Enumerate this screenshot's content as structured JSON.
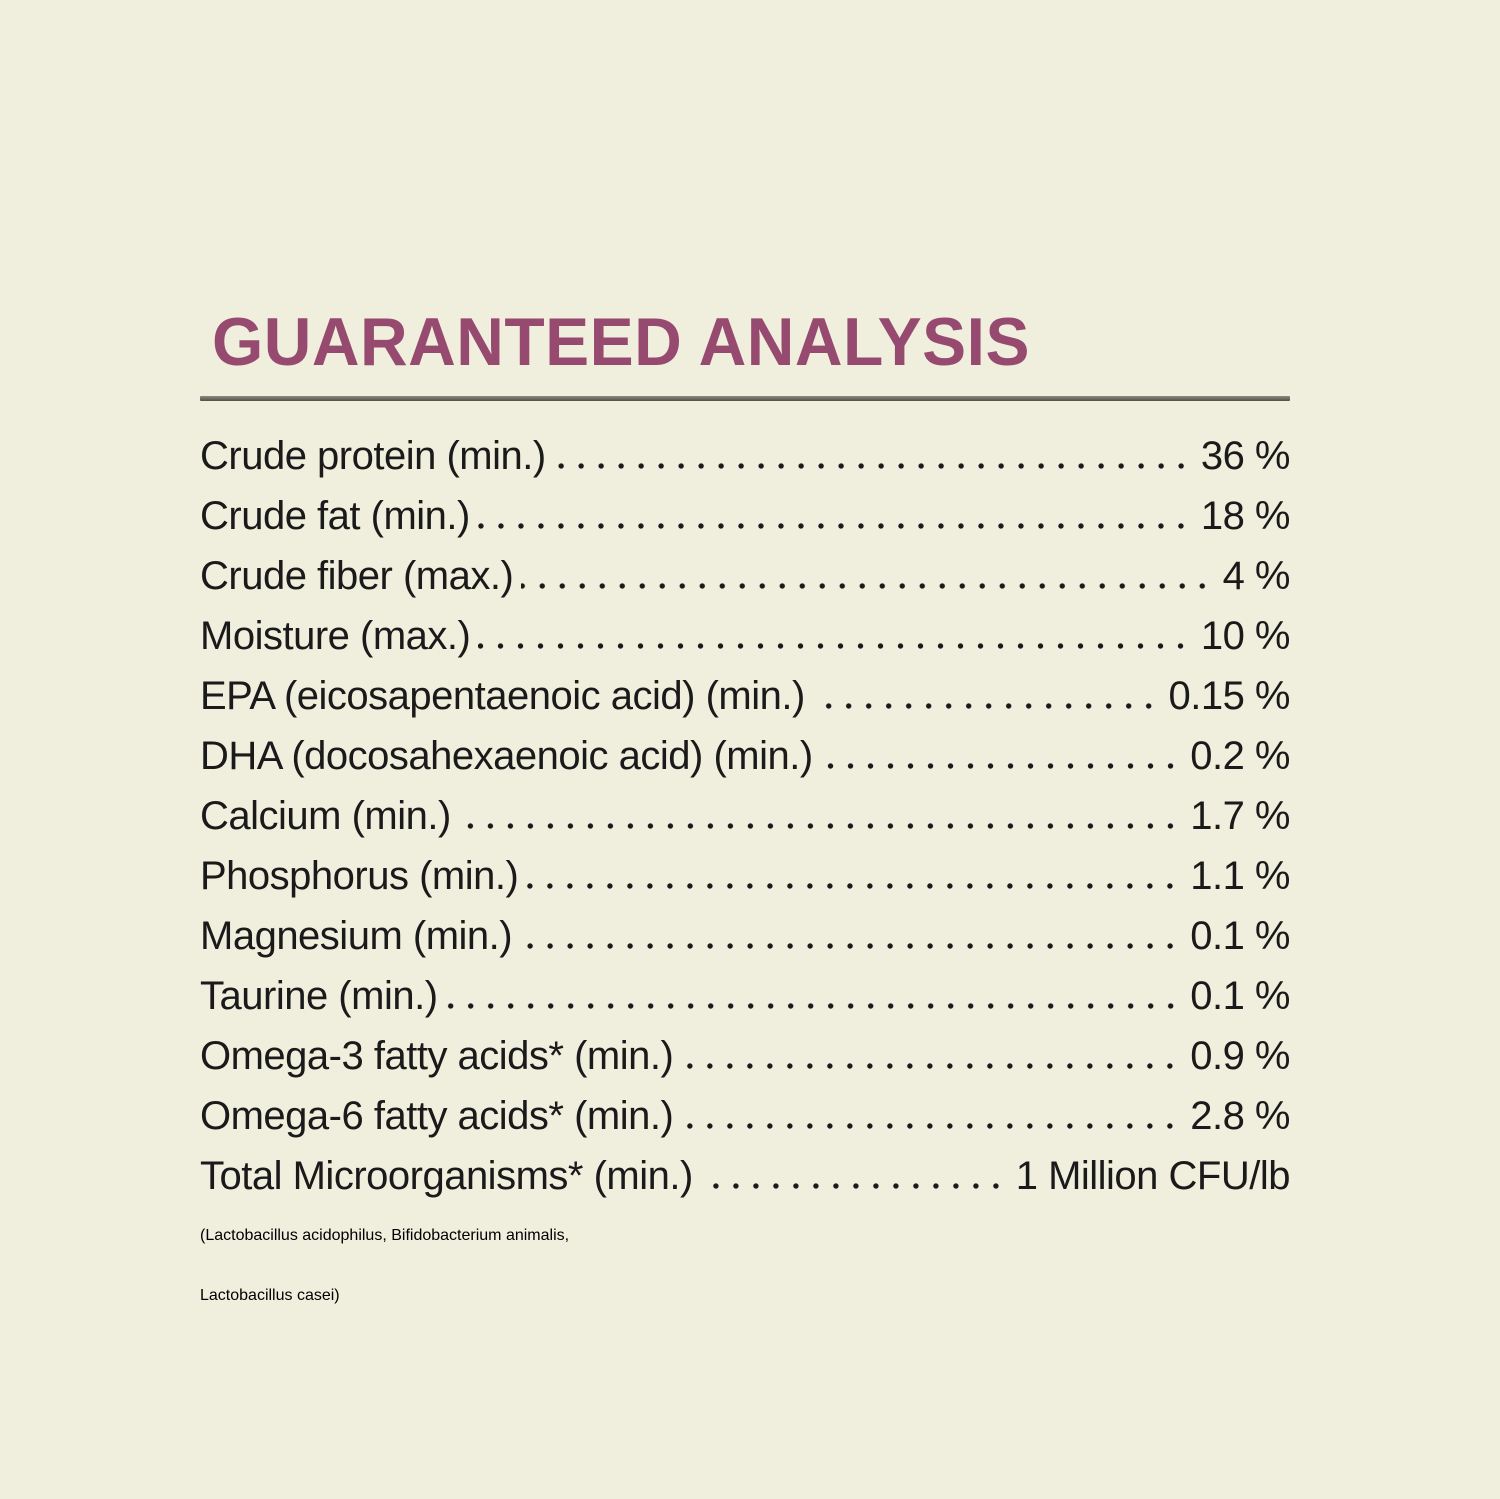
{
  "page": {
    "background_color": "#f0eedd"
  },
  "header": {
    "title": "GUARANTEED ANALYSIS",
    "title_color": "#974a70",
    "rule_color": "#6b6a61"
  },
  "analysis": {
    "text_color": "#1a1a1a",
    "rows": [
      {
        "label": "Crude protein (min.)",
        "value": "36 %"
      },
      {
        "label": "Crude fat (min.)",
        "value": "18 %"
      },
      {
        "label": "Crude fiber (max.)",
        "value": "4 %"
      },
      {
        "label": "Moisture (max.)",
        "value": "10 %"
      },
      {
        "label": "EPA (eicosapentaenoic acid) (min.)",
        "value": "0.15 %"
      },
      {
        "label": "DHA (docosahexaenoic acid) (min.)",
        "value": "0.2 %"
      },
      {
        "label": "Calcium (min.)",
        "value": "1.7 %"
      },
      {
        "label": "Phosphorus (min.)",
        "value": "1.1 %"
      },
      {
        "label": "Magnesium (min.)",
        "value": "0.1 %"
      },
      {
        "label": "Taurine (min.)",
        "value": "0.1 %"
      },
      {
        "label": "Omega-3 fatty acids* (min.)",
        "value": "0.9 %"
      },
      {
        "label": "Omega-6 fatty acids* (min.)",
        "value": "2.8 %"
      },
      {
        "label": "Total Microorganisms* (min.)",
        "value": "1 Million CFU/lb"
      }
    ],
    "continuation_lines": [
      "(Lactobacillus acidophilus, Bifidobacterium animalis,",
      "Lactobacillus casei)"
    ]
  }
}
